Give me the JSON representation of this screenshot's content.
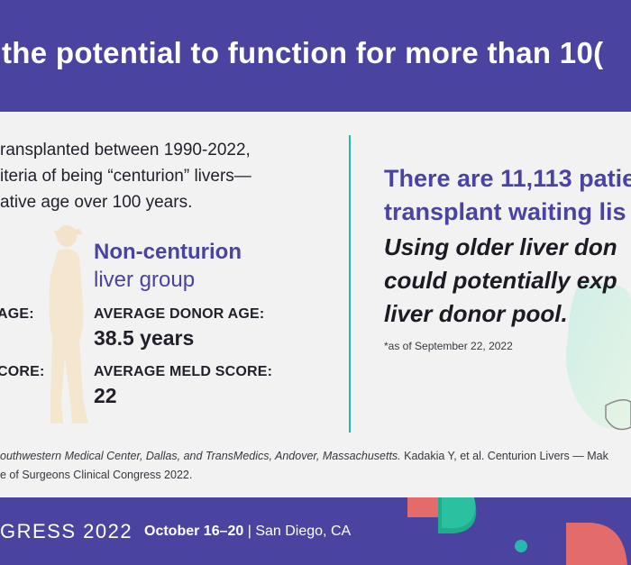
{
  "header": {
    "title": "the potential to function for more than 10("
  },
  "intro": {
    "lines": [
      "ransplanted between 1990-2022,",
      "iteria of being “centurion” livers—",
      "ative age over 100 years."
    ]
  },
  "centurion_group": {
    "stats": [
      {
        "label": "AGE:"
      },
      {
        "label": "CORE:"
      }
    ]
  },
  "non_centurion_group": {
    "title_bold": "Non-centurion",
    "title_regular": "liver group",
    "stats": [
      {
        "label": "AVERAGE DONOR AGE:",
        "value": "38.5 years"
      },
      {
        "label": "AVERAGE MELD SCORE:",
        "value": "22"
      }
    ]
  },
  "right_panel": {
    "highlight_lines": [
      "There are 11,113 patie",
      "transplant waiting lis"
    ],
    "emphasis_lines": [
      "Using older liver don",
      "could potentially exp",
      "liver donor pool."
    ],
    "footnote": "*as of September 22, 2022"
  },
  "source": {
    "line1_italic": "outhwestern Medical Center, Dallas, and TransMedics, Andover, Massachusetts.",
    "line1_regular": " Kadakia Y, et al. Centurion Livers — Mak",
    "line2": "e of Surgeons Clinical Congress 2022."
  },
  "footer": {
    "event": "GRESS 2022",
    "dates": "October 16–20",
    "location": " | San Diego, CA"
  },
  "colors": {
    "brand_purple": "#4a44a0",
    "accent_teal": "#2bb5b0",
    "accent_coral": "#e46b6b",
    "accent_green": "#1fae8a",
    "panel_bg": "#f2f2f2"
  }
}
